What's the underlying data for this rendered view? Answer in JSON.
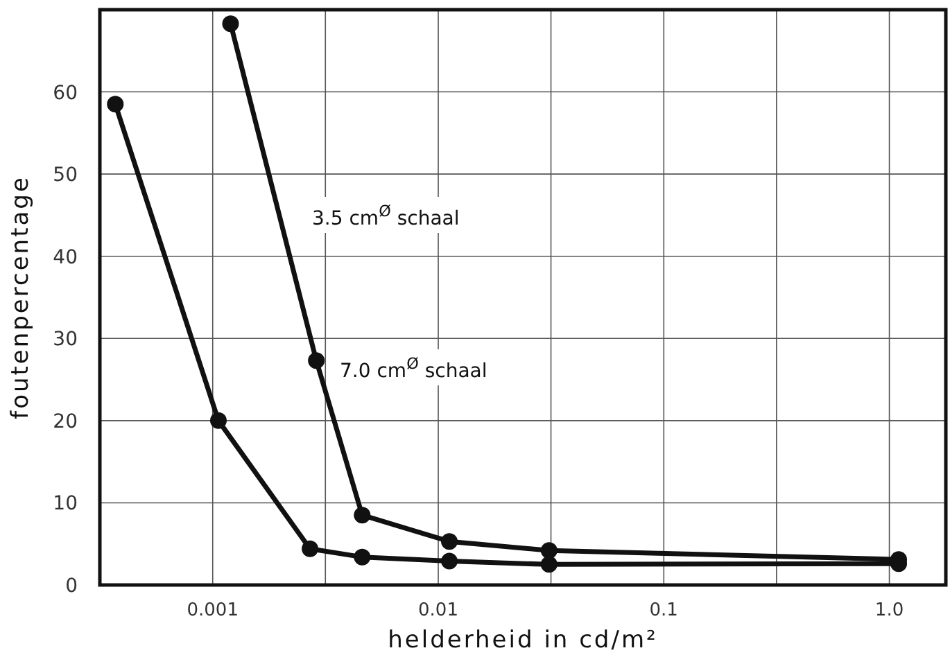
{
  "chart_data": {
    "type": "line",
    "xlabel": "helderheid in cd/m²",
    "ylabel": "foutenpercentage",
    "log": "x",
    "grid": true,
    "marker": "circle",
    "line_style": "solid",
    "xlim": [
      0.000316,
      1.78
    ],
    "ylim": [
      0,
      70
    ],
    "xticks": [
      {
        "value": 0.001,
        "label": "0.001"
      },
      {
        "value": 0.00316,
        "label": null
      },
      {
        "value": 0.01,
        "label": "0.01"
      },
      {
        "value": 0.0316,
        "label": null
      },
      {
        "value": 0.1,
        "label": "0.1"
      },
      {
        "value": 0.316,
        "label": null
      },
      {
        "value": 1,
        "label": "1.0"
      }
    ],
    "yticks": [
      0,
      10,
      20,
      30,
      40,
      50,
      60
    ],
    "annotations": [
      "3.5 cm$^{Ø}$ schaal",
      "7.0 cm$^{Ø}$ schaal"
    ],
    "series": [
      {
        "color": "#111111",
        "x": [
          0.00037,
          0.00106,
          0.0027,
          0.0046,
          0.0112,
          0.031,
          1.1
        ],
        "values": [
          58.5,
          20,
          4.4,
          3.4,
          2.9,
          2.5,
          2.6
        ]
      },
      {
        "color": "#111111",
        "x": [
          0.0012,
          0.00288,
          0.0046,
          0.0112,
          0.031,
          1.1
        ],
        "values": [
          68.3,
          27.3,
          8.5,
          5.3,
          4.2,
          3.1
        ]
      }
    ]
  }
}
